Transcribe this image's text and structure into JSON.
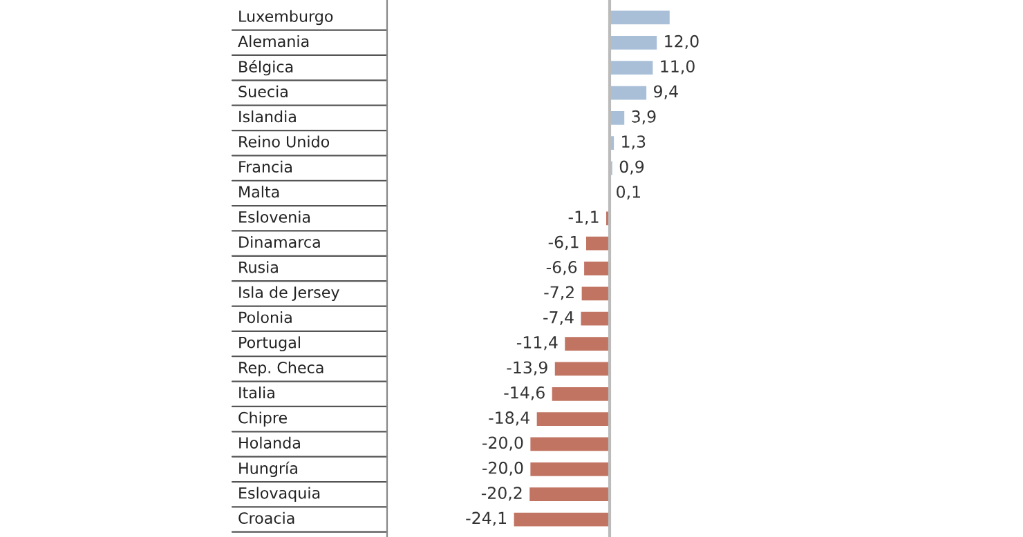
{
  "chart_data": {
    "type": "bar",
    "orientation": "horizontal",
    "categories": [
      "Luxemburgo",
      "Alemania",
      "Bélgica",
      "Suecia",
      "Islandia",
      "Reino Unido",
      "Francia",
      "Malta",
      "Eslovenia",
      "Dinamarca",
      "Rusia",
      "Isla de Jersey",
      "Polonia",
      "Portugal",
      "Rep. Checa",
      "Italia",
      "Chipre",
      "Holanda",
      "Hungría",
      "Eslovaquia",
      "Croacia"
    ],
    "values": [
      15.2,
      12.0,
      11.0,
      9.4,
      3.9,
      1.3,
      0.9,
      0.1,
      -1.1,
      -6.1,
      -6.6,
      -7.2,
      -7.4,
      -11.4,
      -13.9,
      -14.6,
      -18.4,
      -20.0,
      -20.0,
      -20.2,
      -24.1
    ],
    "colors": [
      "#a9bfd8",
      "#a9bfd8",
      "#a9bfd8",
      "#a9bfd8",
      "#a9bfd8",
      "#a9bfd8",
      "#a9bfd8",
      "#a9bfd8",
      "#c27462",
      "#c27462",
      "#c27462",
      "#c27462",
      "#c27462",
      "#c27462",
      "#c27462",
      "#c27462",
      "#c27462",
      "#c27462",
      "#c27462",
      "#c27462",
      "#c27462"
    ],
    "value_labels": [
      null,
      "12,0",
      "11,0",
      "9,4",
      "3,9",
      "1,3",
      "0,9",
      "0,1",
      "-1,1",
      "-6,1",
      "-6,6",
      "-7,2",
      "-7,4",
      "-11,4",
      "-13,9",
      "-14,6",
      "-18,4",
      "-20,0",
      "-20,0",
      "-20,2",
      "-24,1"
    ],
    "legend": false
  }
}
